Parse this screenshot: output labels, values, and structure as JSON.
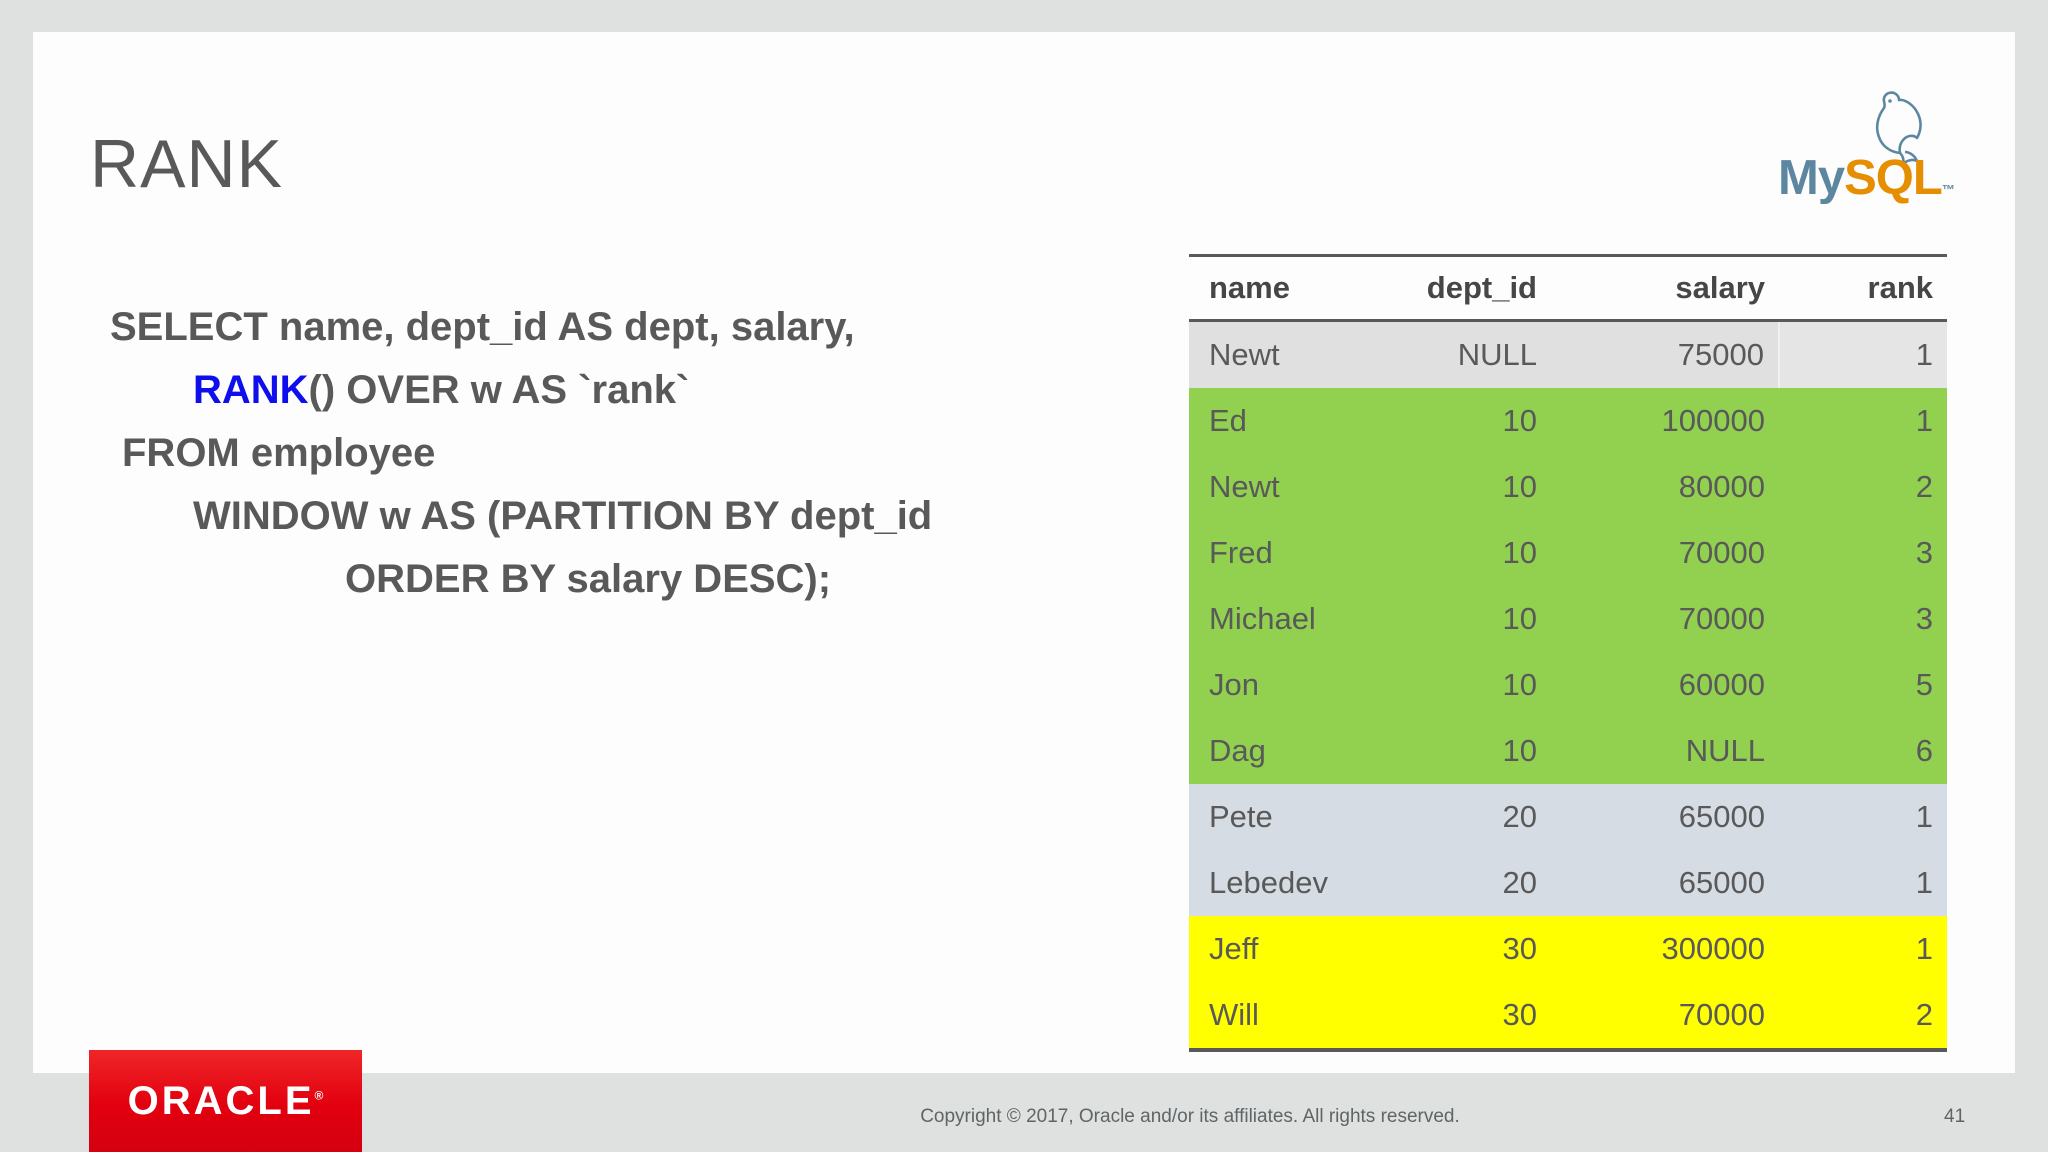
{
  "slide": {
    "title": "RANK"
  },
  "logos": {
    "mysql": {
      "my": "My",
      "sql": "SQL",
      "tm": "™",
      "dolphin_icon": "mysql-dolphin-icon"
    },
    "oracle": {
      "text": "ORACLE",
      "registered": "®"
    }
  },
  "code": {
    "lines": [
      {
        "indent": 0,
        "segments": [
          {
            "text": "SELECT name, dept_id AS dept, salary,",
            "style": "plain"
          }
        ]
      },
      {
        "indent": 2,
        "segments": [
          {
            "text": "RANK",
            "style": "keyword-blue"
          },
          {
            "text": "() OVER w AS `rank`",
            "style": "plain"
          }
        ]
      },
      {
        "indent": 1,
        "segments": [
          {
            "text": "FROM employee",
            "style": "plain"
          }
        ]
      },
      {
        "indent": 2,
        "segments": [
          {
            "text": "WINDOW w AS (PARTITION BY dept_id",
            "style": "plain"
          }
        ]
      },
      {
        "indent": 3,
        "segments": [
          {
            "text": "ORDER BY salary DESC);",
            "style": "plain"
          }
        ]
      }
    ]
  },
  "table": {
    "columns": [
      "name",
      "dept_id",
      "salary",
      "rank"
    ],
    "rows": [
      {
        "cells": [
          "Newt",
          "NULL",
          "75000",
          "1"
        ],
        "highlight": "gray"
      },
      {
        "cells": [
          "Ed",
          "10",
          "100000",
          "1"
        ],
        "highlight": "green"
      },
      {
        "cells": [
          "Newt",
          "10",
          "80000",
          "2"
        ],
        "highlight": "green"
      },
      {
        "cells": [
          "Fred",
          "10",
          "70000",
          "3"
        ],
        "highlight": "green"
      },
      {
        "cells": [
          "Michael",
          "10",
          "70000",
          "3"
        ],
        "highlight": "green"
      },
      {
        "cells": [
          "Jon",
          "10",
          "60000",
          "5"
        ],
        "highlight": "green"
      },
      {
        "cells": [
          "Dag",
          "10",
          "NULL",
          "6"
        ],
        "highlight": "green"
      },
      {
        "cells": [
          "Pete",
          "20",
          "65000",
          "1"
        ],
        "highlight": "blue"
      },
      {
        "cells": [
          "Lebedev",
          "20",
          "65000",
          "1"
        ],
        "highlight": "blue"
      },
      {
        "cells": [
          "Jeff",
          "30",
          "300000",
          "1"
        ],
        "highlight": "yellow"
      },
      {
        "cells": [
          "Will",
          "30",
          "70000",
          "2"
        ],
        "highlight": "yellow"
      }
    ]
  },
  "footer": {
    "copyright": "Copyright © 2017, Oracle and/or its affiliates. All rights reserved.",
    "page_number": "41"
  },
  "colors": {
    "hl-gray": "#e0e0e0",
    "hl-green": "#92d050",
    "hl-blue": "#d6dce4",
    "hl-yellow": "#ffff00",
    "kw-blue": "#0f0fee",
    "mysql-blue": "#5d87a1",
    "mysql-orange": "#e48e00",
    "oracle-red": "#e2000f"
  }
}
